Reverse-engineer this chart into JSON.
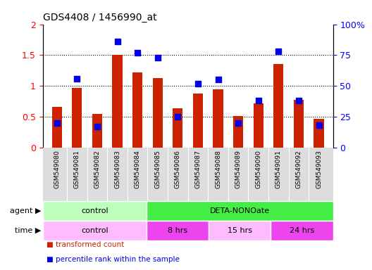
{
  "title": "GDS4408 / 1456990_at",
  "samples": [
    "GSM549080",
    "GSM549081",
    "GSM549082",
    "GSM549083",
    "GSM549084",
    "GSM549085",
    "GSM549086",
    "GSM549087",
    "GSM549088",
    "GSM549089",
    "GSM549090",
    "GSM549091",
    "GSM549092",
    "GSM549093"
  ],
  "transformed_count": [
    0.66,
    0.97,
    0.55,
    1.5,
    1.22,
    1.13,
    0.64,
    0.88,
    0.94,
    0.51,
    0.72,
    1.36,
    0.77,
    0.46
  ],
  "percentile_rank": [
    20,
    56,
    17,
    86,
    77,
    73,
    25,
    52,
    55,
    20,
    38,
    78,
    38,
    18
  ],
  "bar_color": "#cc2200",
  "dot_color": "#0000ee",
  "left_ylim": [
    0,
    2
  ],
  "right_ylim": [
    0,
    100
  ],
  "left_yticks": [
    0,
    0.5,
    1.0,
    1.5,
    2.0
  ],
  "left_yticklabels": [
    "0",
    "0.5",
    "1",
    "1.5",
    "2"
  ],
  "right_yticks": [
    0,
    25,
    50,
    75,
    100
  ],
  "right_yticklabels": [
    "0",
    "25",
    "50",
    "75",
    "100%"
  ],
  "agent_labels": [
    {
      "text": "control",
      "start": 0,
      "end": 5,
      "color": "#bbffbb"
    },
    {
      "text": "DETA-NONOate",
      "start": 5,
      "end": 14,
      "color": "#44ee44"
    }
  ],
  "time_labels": [
    {
      "text": "control",
      "start": 0,
      "end": 5,
      "color": "#ffbbff"
    },
    {
      "text": "8 hrs",
      "start": 5,
      "end": 8,
      "color": "#ee44ee"
    },
    {
      "text": "15 hrs",
      "start": 8,
      "end": 11,
      "color": "#ffbbff"
    },
    {
      "text": "24 hrs",
      "start": 11,
      "end": 14,
      "color": "#ee44ee"
    }
  ],
  "agent_row_label": "agent",
  "time_row_label": "time",
  "legend_items": [
    {
      "label": "transformed count",
      "color": "#cc2200"
    },
    {
      "label": "percentile rank within the sample",
      "color": "#0000ee"
    }
  ],
  "bar_width": 0.5,
  "dot_size": 28,
  "background_color": "#ffffff",
  "xticklabel_bg": "#dddddd",
  "grid_color": "#000000",
  "grid_vals": [
    0.5,
    1.0,
    1.5
  ]
}
